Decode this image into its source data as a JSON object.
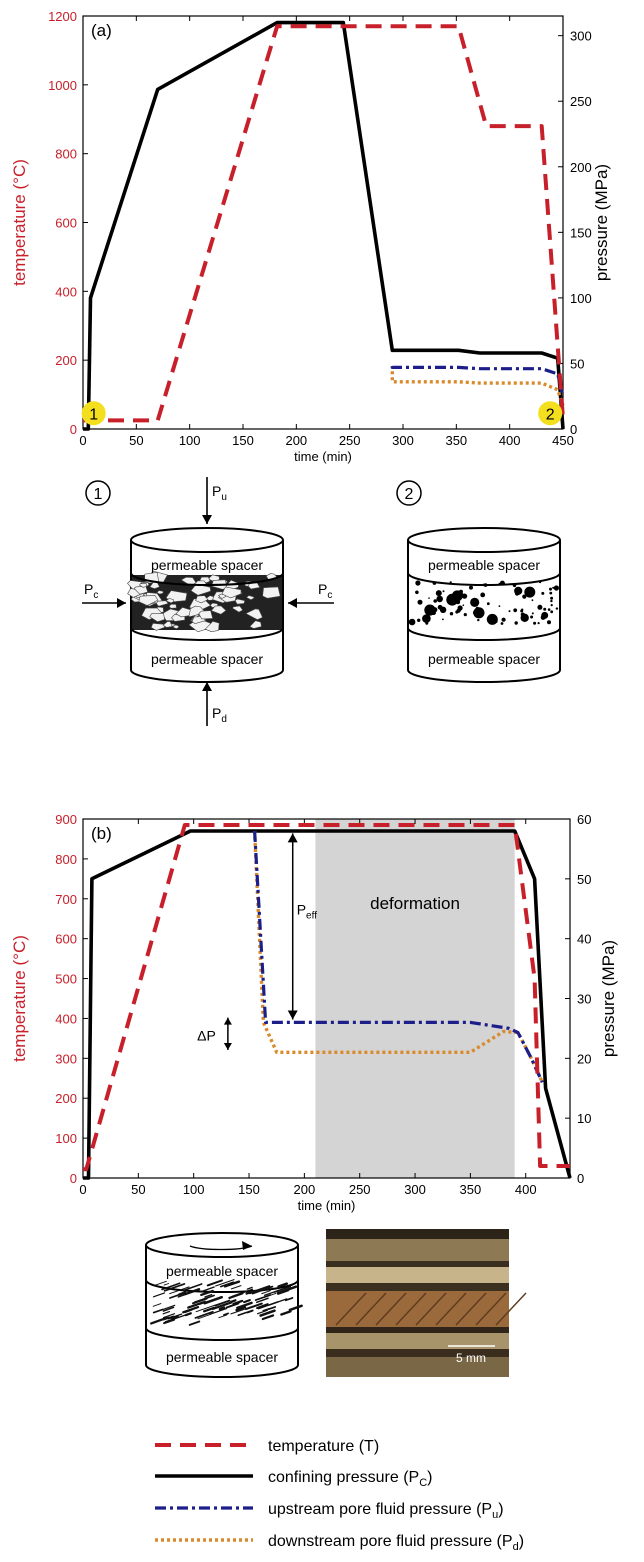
{
  "colors": {
    "temperature": "#c8202a",
    "confining": "#000000",
    "upstream": "#1c1f8a",
    "downstream": "#d88a2c",
    "deformation_fill": "#d4d4d4",
    "marker": "#f4df1e"
  },
  "chart_data": [
    {
      "type": "line",
      "panel_label": "(a)",
      "xlabel": "time (min)",
      "ylabel_left": "temperature (°C)",
      "ylabel_right": "pressure (MPa)",
      "xlim": [
        0,
        450
      ],
      "ylim_left": [
        0,
        1200
      ],
      "ylim_right": [
        0,
        315
      ],
      "x_ticks": [
        0,
        50,
        100,
        150,
        200,
        250,
        300,
        350,
        400,
        450
      ],
      "y_ticks_left": [
        0,
        200,
        400,
        600,
        800,
        1000,
        1200
      ],
      "y_ticks_right": [
        0,
        50,
        100,
        150,
        200,
        250,
        300
      ],
      "series": [
        {
          "key": "temperature",
          "axis": "left",
          "x": [
            0,
            5,
            70,
            182,
            244,
            352,
            378,
            430,
            450
          ],
          "y": [
            25,
            25,
            25,
            1170,
            1170,
            1170,
            880,
            880,
            30
          ]
        },
        {
          "key": "confining",
          "axis": "right",
          "x": [
            0,
            5,
            7,
            70,
            182,
            244,
            290,
            352,
            372,
            430,
            445,
            450
          ],
          "y": [
            0,
            0,
            100,
            259,
            310,
            310,
            60,
            60,
            58,
            58,
            54,
            0
          ]
        },
        {
          "key": "upstream",
          "axis": "right",
          "x": [
            290,
            290,
            352,
            372,
            430,
            445,
            450
          ],
          "y": [
            48,
            47,
            47,
            46,
            46,
            42,
            25
          ]
        },
        {
          "key": "downstream",
          "axis": "right",
          "x": [
            290,
            290,
            352,
            372,
            430,
            445,
            450
          ],
          "y": [
            44,
            36,
            36,
            35,
            35,
            30,
            18
          ]
        }
      ],
      "markers": [
        {
          "label": "1",
          "x": 10,
          "y": 12
        },
        {
          "label": "2",
          "x": 438,
          "y": 12
        }
      ]
    },
    {
      "type": "line",
      "panel_label": "(b)",
      "xlabel": "time (min)",
      "ylabel_left": "temperature (°C)",
      "ylabel_right": "pressure (MPa)",
      "xlim": [
        0,
        440
      ],
      "ylim_left": [
        0,
        900
      ],
      "ylim_right": [
        0,
        60
      ],
      "x_ticks": [
        0,
        50,
        100,
        150,
        200,
        250,
        300,
        350,
        400
      ],
      "y_ticks_left": [
        0,
        100,
        200,
        300,
        400,
        500,
        600,
        700,
        800,
        900
      ],
      "y_ticks_right": [
        0,
        10,
        20,
        30,
        40,
        50,
        60
      ],
      "shaded_region": {
        "x": [
          210,
          390
        ],
        "label": "deformation"
      },
      "series": [
        {
          "key": "temperature",
          "axis": "left",
          "x": [
            0,
            3,
            92,
            390,
            408,
            413,
            430,
            440
          ],
          "y": [
            22,
            22,
            885,
            885,
            500,
            30,
            30,
            30
          ]
        },
        {
          "key": "confining",
          "axis": "right",
          "x": [
            0,
            5,
            8,
            97,
            390,
            408,
            418,
            440
          ],
          "y": [
            0,
            0,
            50,
            58,
            58,
            50,
            15,
            0
          ]
        },
        {
          "key": "upstream",
          "axis": "right",
          "x": [
            155,
            165,
            350,
            385,
            393,
            405,
            415
          ],
          "y": [
            58,
            26,
            26,
            25,
            24.3,
            20,
            16
          ]
        },
        {
          "key": "downstream",
          "axis": "right",
          "x": [
            155,
            163,
            175,
            350,
            380,
            393,
            405,
            415
          ],
          "y": [
            58,
            26,
            21,
            21,
            24.5,
            24.3,
            20,
            16
          ]
        }
      ],
      "annotations": {
        "p_eff": "P",
        "p_eff_sub": "eff",
        "delta_p": "ΔP"
      }
    }
  ],
  "schematics": {
    "state1_number": "1",
    "state2_number": "2",
    "spacer_label": "permeable spacer",
    "pu_main": "P",
    "pu_sub": "u",
    "pd_main": "P",
    "pd_sub": "d",
    "pc_main": "P",
    "pc_sub": "c",
    "scale_bar": "5 mm"
  },
  "legend": [
    {
      "key": "temperature",
      "text": "temperature (T)",
      "sub": ""
    },
    {
      "key": "confining",
      "text": "confining pressure (P",
      "sub": "C",
      "close": ")"
    },
    {
      "key": "upstream",
      "text": "upstream pore fluid pressure (P",
      "sub": "u",
      "close": ")"
    },
    {
      "key": "downstream",
      "text": "downstream pore fluid pressure (P",
      "sub": "d",
      "close": ")"
    }
  ]
}
